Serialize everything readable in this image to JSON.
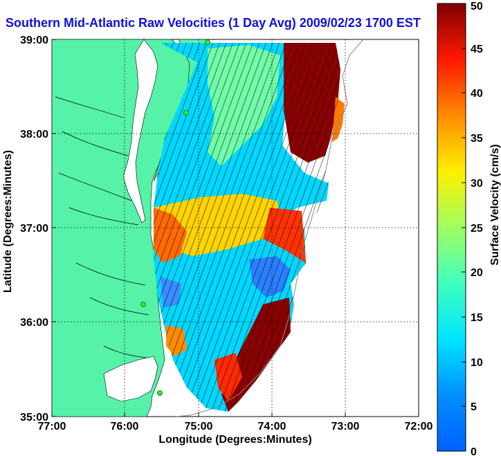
{
  "title": "Southern Mid-Atlantic Raw Velocities (1 Day Avg) 2009/02/23 1700 EST",
  "xlabel": "Longitude (Degrees:Minutes)",
  "ylabel": "Latitude (Degrees:Minutes)",
  "x_ticks": [
    "77:00",
    "76:00",
    "75:00",
    "74:00",
    "73:00",
    "72:00"
  ],
  "y_ticks": [
    "39:00",
    "38:00",
    "37:00",
    "36:00",
    "35:00"
  ],
  "colorbar": {
    "label": "Surface Velocity (cm/s)",
    "ticks": [
      "0",
      "5",
      "10",
      "15",
      "20",
      "25",
      "30",
      "35",
      "40",
      "45",
      "50"
    ],
    "range": [
      0,
      50
    ]
  },
  "colors": {
    "land": "#55f2a8",
    "title": "#1010e0",
    "station": "#33ee33"
  },
  "stations": [
    "station-1",
    "station-2",
    "station-3",
    "station-4"
  ]
}
